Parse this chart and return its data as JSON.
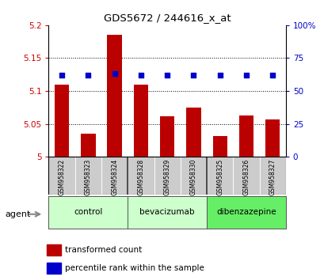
{
  "title": "GDS5672 / 244616_x_at",
  "samples": [
    "GSM958322",
    "GSM958323",
    "GSM958324",
    "GSM958328",
    "GSM958329",
    "GSM958330",
    "GSM958325",
    "GSM958326",
    "GSM958327"
  ],
  "transformed_counts": [
    5.11,
    5.035,
    5.185,
    5.11,
    5.062,
    5.075,
    5.032,
    5.063,
    5.057
  ],
  "percentile_ranks": [
    62,
    62,
    63,
    62,
    62,
    62,
    62,
    62,
    62
  ],
  "ylim_left": [
    5.0,
    5.2
  ],
  "ylim_right": [
    0,
    100
  ],
  "yticks_left": [
    5.0,
    5.05,
    5.1,
    5.15,
    5.2
  ],
  "yticks_right": [
    0,
    25,
    50,
    75,
    100
  ],
  "ytick_labels_left": [
    "5",
    "5.05",
    "5.1",
    "5.15",
    "5.2"
  ],
  "ytick_labels_right": [
    "0",
    "25",
    "50",
    "75",
    "100%"
  ],
  "groups": [
    {
      "label": "control",
      "indices": [
        0,
        1,
        2
      ],
      "color": "#ccffcc"
    },
    {
      "label": "bevacizumab",
      "indices": [
        3,
        4,
        5
      ],
      "color": "#ccffcc"
    },
    {
      "label": "dibenzazepine",
      "indices": [
        6,
        7,
        8
      ],
      "color": "#66ee66"
    }
  ],
  "bar_color": "#bb0000",
  "dot_color": "#0000cc",
  "bar_width": 0.55,
  "agent_label": "agent",
  "legend_bar_label": "transformed count",
  "legend_dot_label": "percentile rank within the sample",
  "background_color": "#ffffff",
  "ylabel_left_color": "#cc0000",
  "ylabel_right_color": "#0000cc",
  "sample_box_color": "#cccccc",
  "group_border_color": "#333333"
}
